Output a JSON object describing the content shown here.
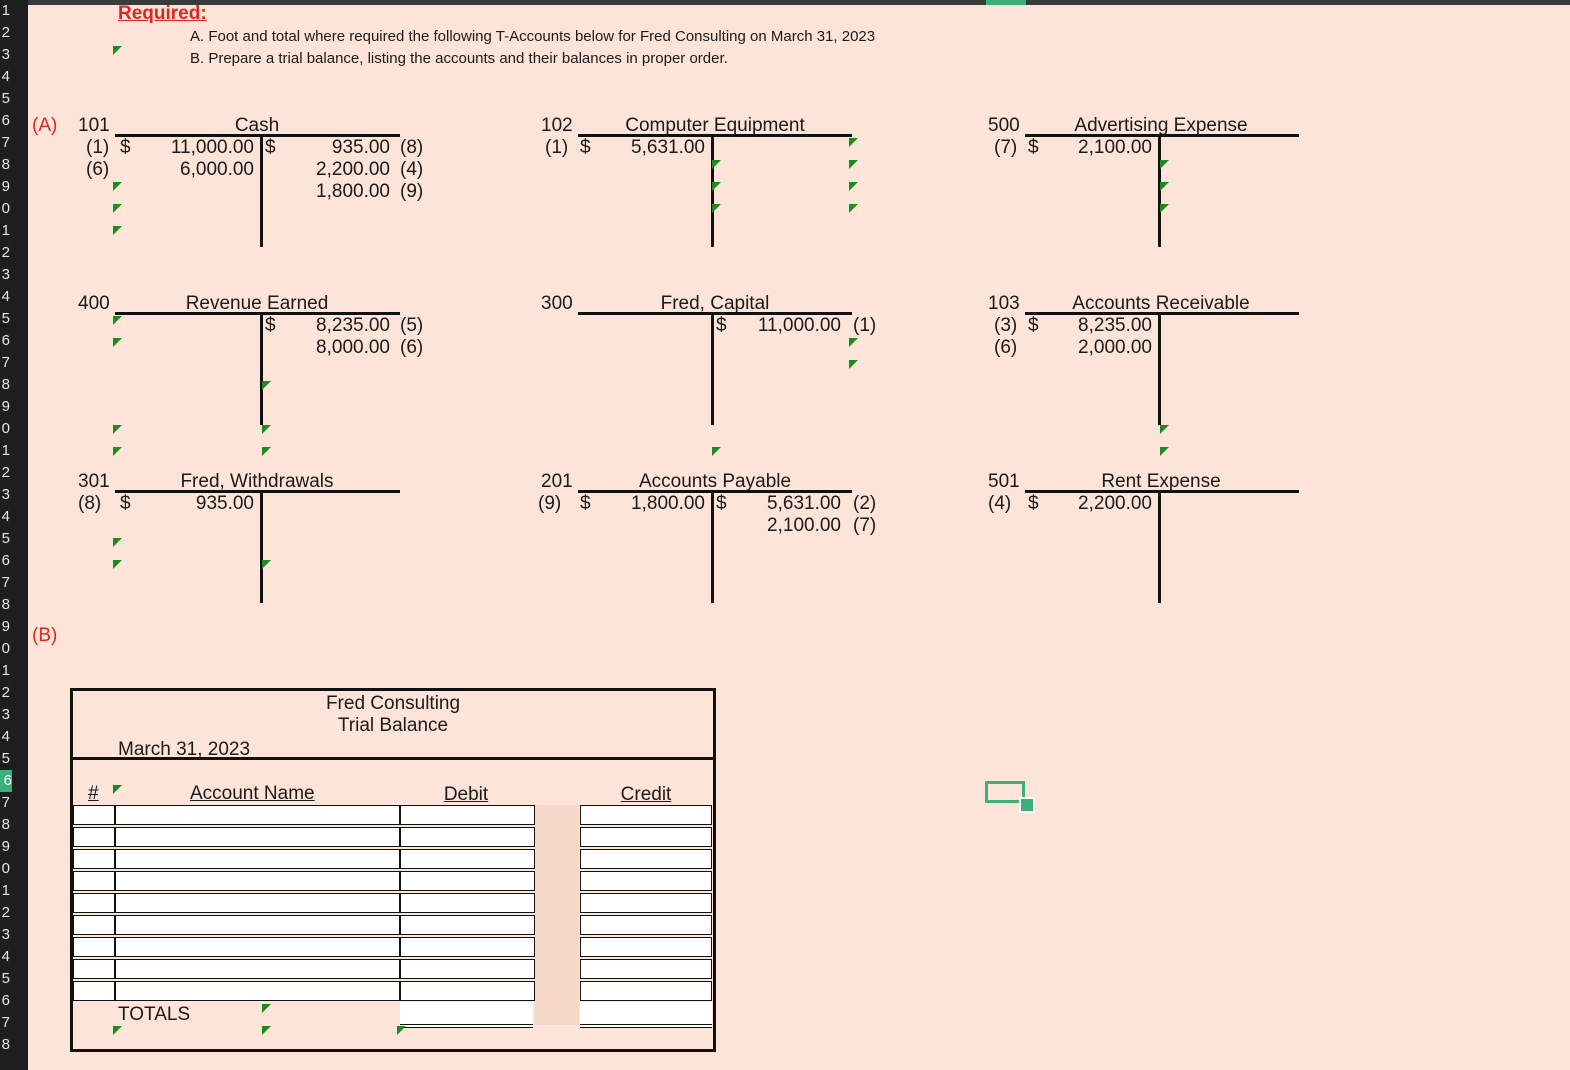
{
  "row_numbers": [
    "1",
    "2",
    "3",
    "4",
    "5",
    "6",
    "7",
    "8",
    "9",
    "0",
    "1",
    "2",
    "3",
    "4",
    "5",
    "6",
    "7",
    "8",
    "9",
    "0",
    "1",
    "2",
    "3",
    "4",
    "5",
    "6",
    "7",
    "8",
    "9",
    "0",
    "1",
    "2",
    "3",
    "4",
    "5",
    "6",
    "7",
    "8",
    "9",
    "0",
    "1",
    "2",
    "3",
    "4",
    "5",
    "6",
    "7",
    "8"
  ],
  "header": {
    "required": "Required:",
    "instruction_a": "A. Foot and total where required the following T-Accounts below for Fred Consulting on March 31, 2023",
    "instruction_b": "B. Prepare a trial balance, listing the accounts and their balances in proper order."
  },
  "section_a_label": "(A)",
  "section_b_label": "(B)",
  "accounts": {
    "cash": {
      "number": "101",
      "name": "Cash",
      "debit_refs": [
        "(1)",
        "(6)"
      ],
      "debit_dollar": "$",
      "debits": [
        "11,000.00",
        "6,000.00"
      ],
      "credit_dollar": "$",
      "credits": [
        "935.00",
        "2,200.00",
        "1,800.00"
      ],
      "credit_refs": [
        "(8)",
        "(4)",
        "(9)"
      ]
    },
    "computer_equipment": {
      "number": "102",
      "name": "Computer Equipment",
      "debit_refs": [
        "(1)"
      ],
      "debit_dollar": "$",
      "debits": [
        "5,631.00"
      ]
    },
    "advertising_expense": {
      "number": "500",
      "name": "Advertising Expense",
      "debit_refs": [
        "(7)"
      ],
      "debit_dollar": "$",
      "debits": [
        "2,100.00"
      ]
    },
    "revenue_earned": {
      "number": "400",
      "name": "Revenue Earned",
      "credit_dollar": "$",
      "credits": [
        "8,235.00",
        "8,000.00"
      ],
      "credit_refs": [
        "(5)",
        "(6)"
      ]
    },
    "fred_capital": {
      "number": "300",
      "name": "Fred, Capital",
      "credit_dollar": "$",
      "credits": [
        "11,000.00"
      ],
      "credit_refs": [
        "(1)"
      ]
    },
    "accounts_receivable": {
      "number": "103",
      "name": "Accounts Receivable",
      "debit_refs": [
        "(3)",
        "(6)"
      ],
      "debit_dollar": "$",
      "debits": [
        "8,235.00",
        "2,000.00"
      ]
    },
    "fred_withdrawals": {
      "number": "301",
      "name": "Fred, Withdrawals",
      "debit_refs": [
        "(8)"
      ],
      "debit_dollar": "$",
      "debits": [
        "935.00"
      ]
    },
    "accounts_payable": {
      "number": "201",
      "name": "Accounts Payable",
      "debit_refs": [
        "(9)"
      ],
      "debit_dollar": "$",
      "debits": [
        "1,800.00"
      ],
      "credit_dollar": "$",
      "credits": [
        "5,631.00",
        "2,100.00"
      ],
      "credit_refs": [
        "(2)",
        "(7)"
      ]
    },
    "rent_expense": {
      "number": "501",
      "name": "Rent Expense",
      "debit_refs": [
        "(4)"
      ],
      "debit_dollar": "$",
      "debits": [
        "2,200.00"
      ]
    }
  },
  "trial_balance": {
    "company": "Fred Consulting",
    "title": "Trial Balance",
    "date": "March 31, 2023",
    "col_number": "#",
    "col_account": "Account Name",
    "col_debit": "Debit",
    "col_credit": "Credit",
    "totals_label": "TOTALS",
    "row_count": 9
  },
  "colors": {
    "sheet_bg": "#fce4d9",
    "accent_red": "#e0261f",
    "marker_green": "#1f8a1f",
    "selection_green": "#3cb07a"
  }
}
